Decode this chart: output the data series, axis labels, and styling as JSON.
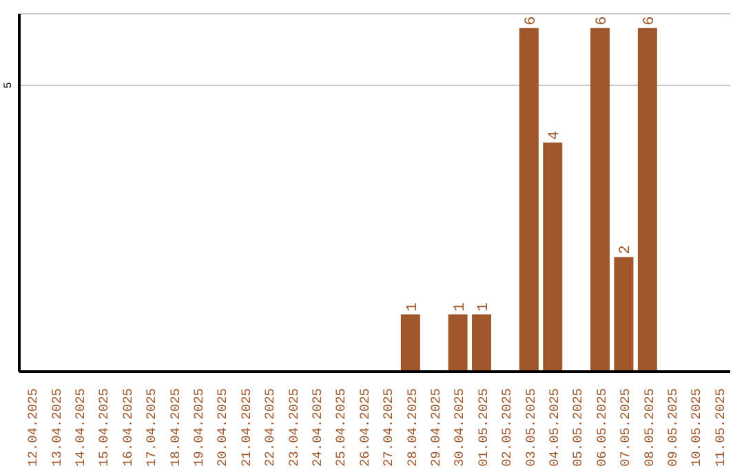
{
  "chart_data": {
    "type": "bar",
    "categories": [
      "12.04.2025",
      "13.04.2025",
      "14.04.2025",
      "15.04.2025",
      "16.04.2025",
      "17.04.2025",
      "18.04.2025",
      "19.04.2025",
      "20.04.2025",
      "21.04.2025",
      "22.04.2025",
      "23.04.2025",
      "24.04.2025",
      "25.04.2025",
      "26.04.2025",
      "27.04.2025",
      "28.04.2025",
      "29.04.2025",
      "30.04.2025",
      "01.05.2025",
      "02.05.2025",
      "03.05.2025",
      "04.05.2025",
      "05.05.2025",
      "06.05.2025",
      "07.05.2025",
      "08.05.2025",
      "09.05.2025",
      "10.05.2025",
      "11.05.2025"
    ],
    "values": [
      null,
      null,
      null,
      null,
      null,
      null,
      null,
      null,
      null,
      null,
      null,
      null,
      null,
      null,
      null,
      null,
      1,
      null,
      1,
      1,
      null,
      6,
      4,
      null,
      6,
      2,
      6,
      null,
      null,
      null
    ],
    "color": "#a0582a",
    "ylim": [
      0,
      6.25
    ],
    "yticks": [
      5
    ],
    "grid": "y",
    "data_labels": true
  }
}
